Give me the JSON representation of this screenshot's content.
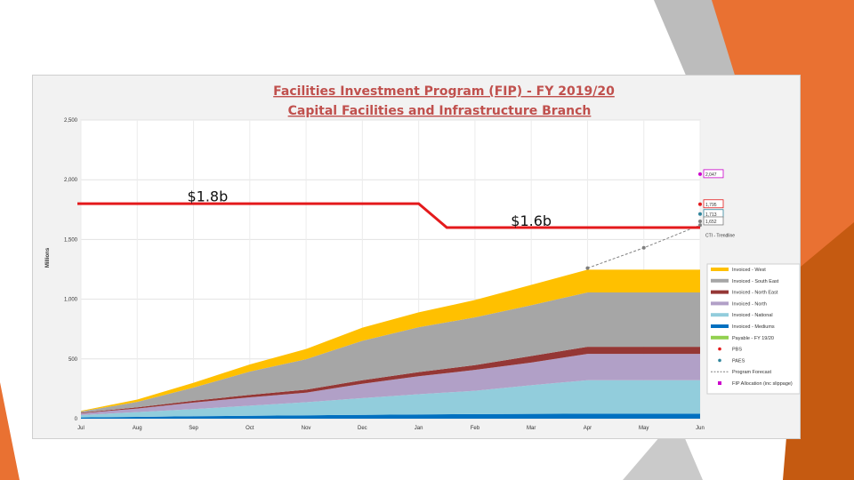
{
  "colors": {
    "slide_orange": "#e97132",
    "slide_grey": "#a6a6a6",
    "slide_dark_orange": "#c55a11",
    "frame_bg": "#f2f2f2",
    "title_color": "#c0504d",
    "budget_line": "#e41a1c"
  },
  "chart_data": {
    "type": "area",
    "title": "Facilities Investment Program (FIP) - FY 2019/20",
    "subtitle": "Capital Facilities and Infrastructure Branch",
    "ylabel": "Millions",
    "xlabel": "",
    "ylim": [
      0,
      2500
    ],
    "yticks": [
      0,
      500,
      1000,
      1500,
      2000,
      2500
    ],
    "ytick_labels": [
      "0",
      "500",
      "1,000",
      "1,500",
      "2,000",
      "2,500"
    ],
    "categories": [
      "Jul",
      "Aug",
      "Sep",
      "Oct",
      "Nov",
      "Dec",
      "Jan",
      "Feb",
      "Mar",
      "Apr",
      "May",
      "Jun"
    ],
    "area_last_index": 11,
    "series": [
      {
        "name": "Invoiced - Mediums",
        "color": "#0070c0",
        "values": [
          10,
          15,
          20,
          24,
          28,
          32,
          35,
          38,
          40,
          42,
          42,
          42
        ]
      },
      {
        "name": "Invoiced - National",
        "color": "#92cddc",
        "values": [
          20,
          40,
          60,
          85,
          110,
          140,
          170,
          195,
          240,
          280,
          280,
          280
        ]
      },
      {
        "name": "Invoiced - North",
        "color": "#b1a0c7",
        "values": [
          15,
          30,
          55,
          70,
          80,
          120,
          150,
          175,
          190,
          220,
          220,
          220
        ]
      },
      {
        "name": "Invoiced - North East",
        "color": "#953735",
        "values": [
          5,
          10,
          15,
          20,
          25,
          30,
          35,
          40,
          55,
          60,
          60,
          60
        ]
      },
      {
        "name": "Invoiced - South East",
        "color": "#a6a6a6",
        "values": [
          10,
          45,
          110,
          195,
          255,
          330,
          375,
          400,
          425,
          455,
          455,
          455
        ]
      },
      {
        "name": "Invoiced - West",
        "color": "#ffc000",
        "values": [
          5,
          20,
          40,
          60,
          85,
          110,
          125,
          145,
          170,
          190,
          190,
          190
        ]
      }
    ],
    "forecast_line": {
      "name": "Program Forecast",
      "color": "#7f7f7f",
      "x": [
        9,
        10,
        11
      ],
      "values": [
        1260,
        1430,
        1620
      ]
    },
    "budget_line": {
      "name": "FIP Allocation",
      "color": "#e41a1c",
      "x": [
        0,
        6,
        6.5,
        11
      ],
      "values": [
        1800,
        1800,
        1600,
        1600
      ]
    },
    "annotations": [
      {
        "text": "$1.8b",
        "x": 2.25,
        "y": 1820
      },
      {
        "text": "$1.6b",
        "x": 8.0,
        "y": 1615
      }
    ],
    "end_labels": [
      {
        "text": "2,047",
        "y": 2047,
        "color": "#cc00cc",
        "marker": "#cc00cc"
      },
      {
        "text": "1,795",
        "y": 1795,
        "color": "#e41a1c",
        "marker": "#e41a1c"
      },
      {
        "text": "1,713",
        "y": 1713,
        "color": "#31859c",
        "marker": "#31859c"
      },
      {
        "text": "1,652",
        "y": 1652,
        "color": "#7f7f7f",
        "marker": "#7f7f7f"
      },
      {
        "text": "CTI - Trendline",
        "y": 1535,
        "color": "#00b050",
        "marker": ""
      }
    ],
    "legend": [
      {
        "label": "Invoiced - West",
        "color": "#ffc000",
        "kind": "band"
      },
      {
        "label": "Invoiced - South East",
        "color": "#a6a6a6",
        "kind": "band"
      },
      {
        "label": "Invoiced - North East",
        "color": "#953735",
        "kind": "band"
      },
      {
        "label": "Invoiced - North",
        "color": "#b1a0c7",
        "kind": "band"
      },
      {
        "label": "Invoiced - National",
        "color": "#92cddc",
        "kind": "band"
      },
      {
        "label": "Invoiced - Mediums",
        "color": "#0070c0",
        "kind": "band"
      },
      {
        "label": "Payable - FY 19/20",
        "color": "#92d050",
        "kind": "band"
      },
      {
        "label": "PBS",
        "color": "#e41a1c",
        "kind": "dot"
      },
      {
        "label": "PAES",
        "color": "#31859c",
        "kind": "dot"
      },
      {
        "label": "Program Forecast",
        "color": "#7f7f7f",
        "kind": "dash"
      },
      {
        "label": "FIP Allocation (inc slippage)",
        "color": "#cc00cc",
        "kind": "square"
      }
    ],
    "legend_position": "right"
  }
}
